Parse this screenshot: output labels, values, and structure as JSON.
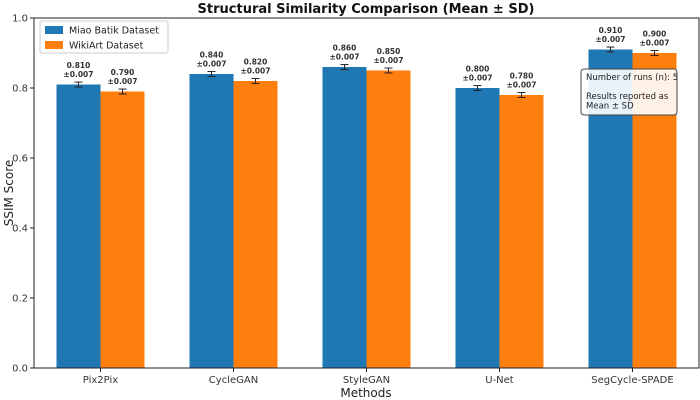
{
  "chart_data": {
    "type": "bar",
    "title": "Structural Similarity Comparison (Mean ± SD)",
    "xlabel": "Methods",
    "ylabel": "SSIM Score",
    "ylim": [
      0,
      1.0
    ],
    "yticks": [
      "0.0",
      "0.2",
      "0.4",
      "0.6",
      "0.8",
      "1.0"
    ],
    "categories": [
      "Pix2Pix",
      "CycleGAN",
      "StyleGAN",
      "U-Net",
      "SegCycle-SPADE"
    ],
    "series": [
      {
        "name": "Miao Batik Dataset",
        "color": "#1f77b4",
        "values": [
          0.81,
          0.84,
          0.86,
          0.8,
          0.91
        ],
        "errors": [
          0.007,
          0.007,
          0.007,
          0.007,
          0.007
        ],
        "labels": [
          "0.810\n±0.007",
          "0.840\n±0.007",
          "0.860\n±0.007",
          "0.800\n±0.007",
          "0.910\n±0.007"
        ]
      },
      {
        "name": "WikiArt Dataset",
        "color": "#ff7f0e",
        "values": [
          0.79,
          0.82,
          0.85,
          0.78,
          0.9
        ],
        "errors": [
          0.007,
          0.007,
          0.007,
          0.007,
          0.007
        ],
        "labels": [
          "0.790\n±0.007",
          "0.820\n±0.007",
          "0.850\n±0.007",
          "0.780\n±0.007",
          "0.900\n±0.007"
        ]
      }
    ],
    "legend_position": "top-left",
    "grid": false,
    "annotation": [
      "Number of runs (n): 5",
      "",
      "Results reported as",
      "Mean ± SD"
    ]
  }
}
